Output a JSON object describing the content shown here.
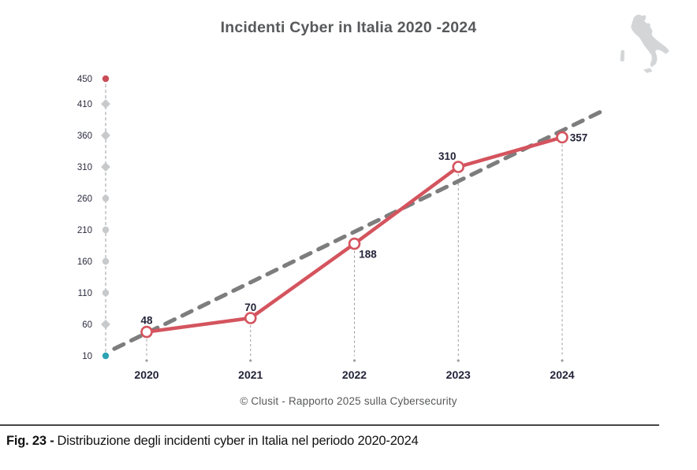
{
  "chart": {
    "title": "Incidenti Cyber in Italia 2020 -2024",
    "attribution": "© Clusit - Rapporto 2025 sulla Cybersecurity"
  },
  "figure_caption": {
    "label": "Fig. 23 -",
    "text": "Distribuzione degli incidenti cyber in Italia nel periodo 2020-2024"
  },
  "icons": {
    "italy_map": "italy-map-icon"
  },
  "colors": {
    "series_red": "#d4545e",
    "marker_fill": "#ffffff",
    "trend_gray": "#7d7d7d",
    "axis_dot_gray": "#c7c9cb",
    "axis_dot_top_red": "#c94d57",
    "axis_dot_bottom_teal": "#2ea3b4",
    "dashed_guide_gray": "#9b9da0",
    "tick_text": "#23233a",
    "title_gray": "#58595b",
    "map_gray": "#d3d5d7"
  },
  "chart_data": {
    "type": "line",
    "title": "Incidenti Cyber in Italia 2020 -2024",
    "categories": [
      "2020",
      "2021",
      "2022",
      "2023",
      "2024"
    ],
    "series": [
      {
        "name": "Incidenti cyber in Italia",
        "values": [
          48,
          70,
          188,
          310,
          357
        ],
        "color": "#d4545e",
        "marker": "open-circle"
      }
    ],
    "point_labels": [
      "48",
      "70",
      "188",
      "310",
      "357"
    ],
    "trendline": {
      "style": "dashed",
      "color": "#7d7d7d",
      "present": true
    },
    "y_ticks": [
      450,
      410,
      360,
      310,
      260,
      210,
      160,
      110,
      60,
      10
    ],
    "ylim": [
      10,
      450
    ],
    "xlabel": "",
    "ylabel": "",
    "grid": false,
    "legend": "none",
    "annotations": "values labeled at each data point; dashed drop lines from points to x-axis"
  }
}
